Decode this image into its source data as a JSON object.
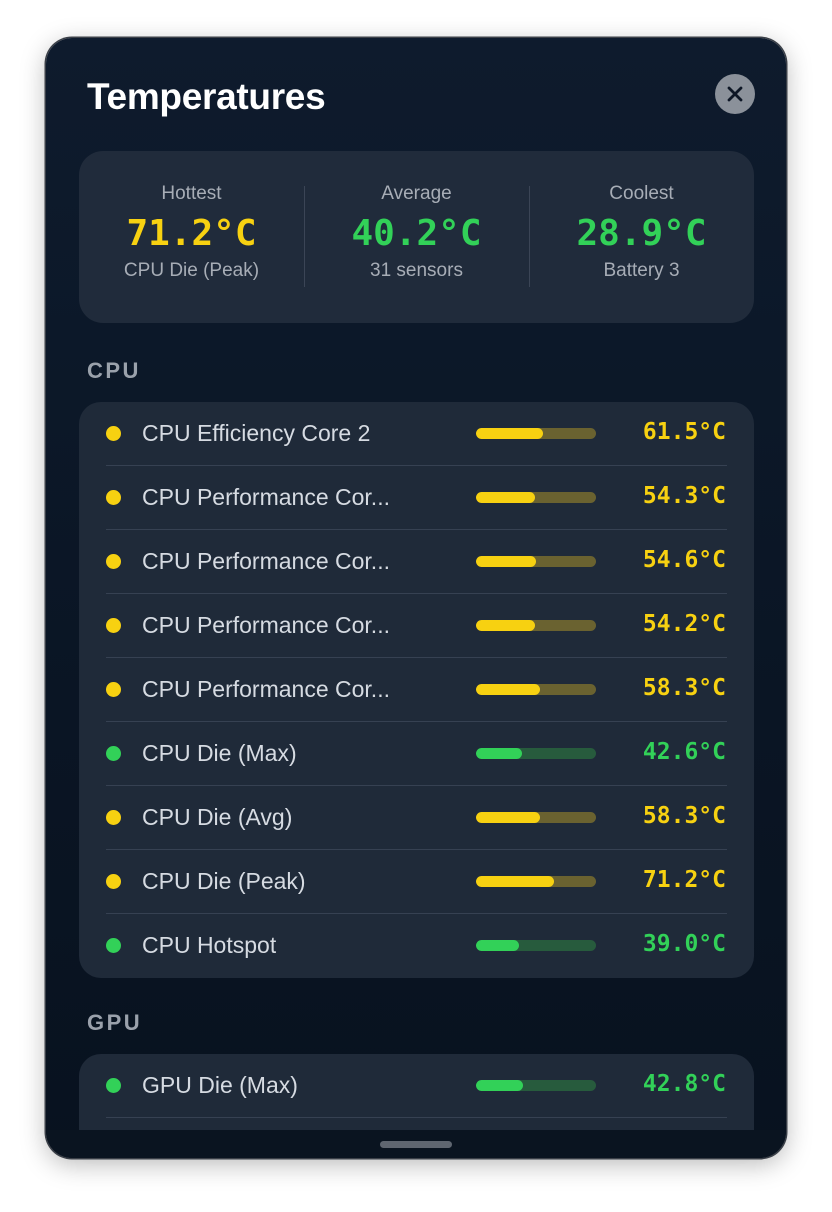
{
  "window": {
    "title": "Temperatures"
  },
  "colors": {
    "warm": "#f7d111",
    "warm_track": "#6a6230",
    "cool": "#32d158",
    "cool_track": "#275b3d"
  },
  "summary": {
    "hottest": {
      "label": "Hottest",
      "value": "71.2°C",
      "sub": "CPU Die (Peak)"
    },
    "average": {
      "label": "Average",
      "value": "40.2°C",
      "sub": "31 sensors"
    },
    "coolest": {
      "label": "Coolest",
      "value": "28.9°C",
      "sub": "Battery 3"
    }
  },
  "sections": [
    {
      "title": "CPU",
      "items": [
        {
          "name": "CPU Efficiency Core 2",
          "value": "61.5°C",
          "level": 0.56,
          "status": "warm"
        },
        {
          "name": "CPU Performance Cor...",
          "value": "54.3°C",
          "level": 0.49,
          "status": "warm"
        },
        {
          "name": "CPU Performance Cor...",
          "value": "54.6°C",
          "level": 0.5,
          "status": "warm"
        },
        {
          "name": "CPU Performance Cor...",
          "value": "54.2°C",
          "level": 0.49,
          "status": "warm"
        },
        {
          "name": "CPU Performance Cor...",
          "value": "58.3°C",
          "level": 0.53,
          "status": "warm"
        },
        {
          "name": "CPU Die (Max)",
          "value": "42.6°C",
          "level": 0.38,
          "status": "cool"
        },
        {
          "name": "CPU Die (Avg)",
          "value": "58.3°C",
          "level": 0.53,
          "status": "warm"
        },
        {
          "name": "CPU Die (Peak)",
          "value": "71.2°C",
          "level": 0.65,
          "status": "warm"
        },
        {
          "name": "CPU Hotspot",
          "value": "39.0°C",
          "level": 0.36,
          "status": "cool"
        }
      ]
    },
    {
      "title": "GPU",
      "items": [
        {
          "name": "GPU Die (Max)",
          "value": "42.8°C",
          "level": 0.39,
          "status": "cool"
        }
      ]
    }
  ]
}
